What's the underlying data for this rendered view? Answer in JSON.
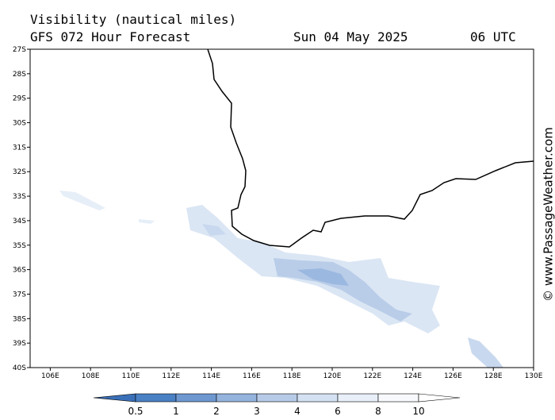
{
  "header": {
    "title": "Visibility (nautical miles)",
    "subtitle": "GFS 072 Hour Forecast",
    "date": "Sun 04 May 2025",
    "time": "06 UTC"
  },
  "map": {
    "lat_labels": [
      "27S",
      "28S",
      "29S",
      "30S",
      "31S",
      "32S",
      "33S",
      "34S",
      "35S",
      "36S",
      "37S",
      "38S",
      "39S",
      "40S"
    ],
    "lon_labels": [
      "106E",
      "108E",
      "110E",
      "112E",
      "114E",
      "116E",
      "118E",
      "120E",
      "122E",
      "124E",
      "126E",
      "128E",
      "130E"
    ]
  },
  "colorbar": {
    "labels": [
      0.5,
      1,
      2,
      3,
      4,
      6,
      8,
      10
    ]
  },
  "watermark": "© www.PassageWeather.com"
}
